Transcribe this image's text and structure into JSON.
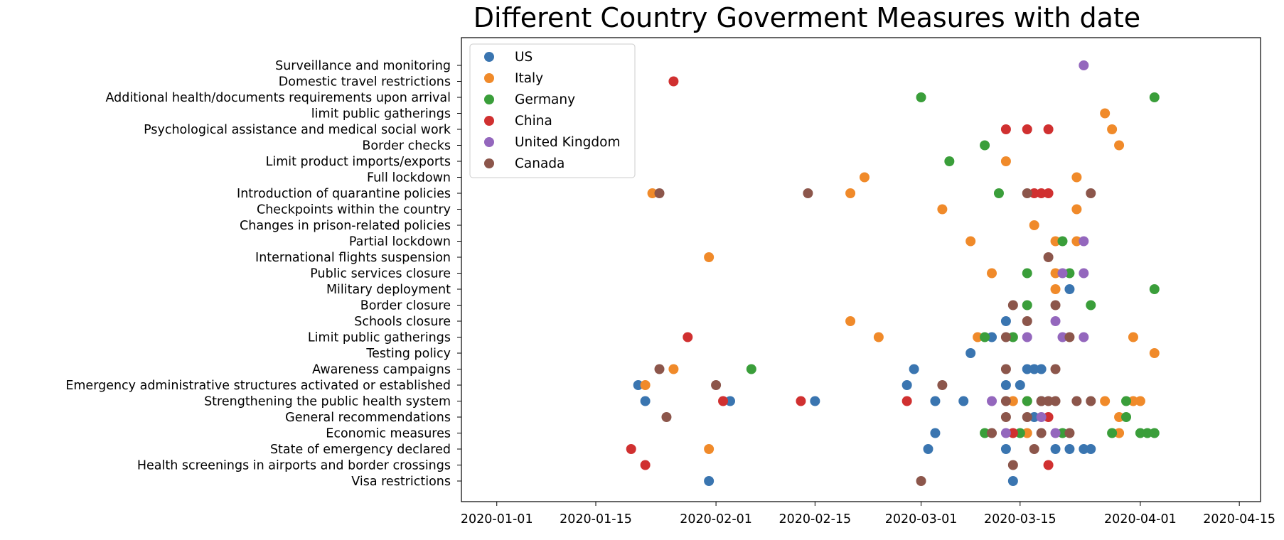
{
  "chart_data": {
    "type": "scatter",
    "title": "Different Country Goverment Measures with date",
    "xlabel": "",
    "ylabel": "",
    "x_axis": "date",
    "xlim": [
      "2019-12-27",
      "2020-04-18"
    ],
    "x_ticks": [
      "2020-01-01",
      "2020-01-15",
      "2020-02-01",
      "2020-02-15",
      "2020-03-01",
      "2020-03-15",
      "2020-04-01",
      "2020-04-15"
    ],
    "grid": false,
    "legend_position": "top-left",
    "categories": [
      "Visa restrictions",
      "Health screenings in airports and border crossings",
      "State of emergency declared",
      "Economic measures",
      "General recommendations",
      "Strengthening the public health system",
      "Emergency administrative structures activated or established",
      "Awareness campaigns",
      "Testing policy",
      "Limit public gatherings",
      "Schools closure",
      "Border closure",
      "Military deployment",
      "Public services closure",
      "International flights suspension",
      "Partial lockdown",
      "Changes in prison-related policies",
      "Checkpoints within the country",
      "Introduction of quarantine policies",
      "Full lockdown",
      "Limit product imports/exports",
      "Border checks",
      "Psychological assistance and medical social work",
      "limit public gatherings",
      "Additional health/documents requirements upon arrival",
      "Domestic travel restrictions",
      "Surveillance and monitoring"
    ],
    "series": [
      {
        "name": "US",
        "color": "#3a75b0",
        "points": [
          {
            "x": "2020-01-31",
            "y": "Visa restrictions"
          },
          {
            "x": "2020-03-14",
            "y": "Visa restrictions"
          },
          {
            "x": "2020-03-02",
            "y": "State of emergency declared"
          },
          {
            "x": "2020-03-13",
            "y": "State of emergency declared"
          },
          {
            "x": "2020-03-20",
            "y": "State of emergency declared"
          },
          {
            "x": "2020-03-22",
            "y": "State of emergency declared"
          },
          {
            "x": "2020-03-24",
            "y": "State of emergency declared"
          },
          {
            "x": "2020-03-25",
            "y": "State of emergency declared"
          },
          {
            "x": "2020-03-03",
            "y": "Economic measures"
          },
          {
            "x": "2020-03-17",
            "y": "General recommendations"
          },
          {
            "x": "2020-01-22",
            "y": "Strengthening the public health system"
          },
          {
            "x": "2020-02-03",
            "y": "Strengthening the public health system"
          },
          {
            "x": "2020-02-15",
            "y": "Strengthening the public health system"
          },
          {
            "x": "2020-03-03",
            "y": "Strengthening the public health system"
          },
          {
            "x": "2020-03-07",
            "y": "Strengthening the public health system"
          },
          {
            "x": "2020-03-18",
            "y": "Strengthening the public health system"
          },
          {
            "x": "2020-01-21",
            "y": "Emergency administrative structures activated or established"
          },
          {
            "x": "2020-02-28",
            "y": "Emergency administrative structures activated or established"
          },
          {
            "x": "2020-03-13",
            "y": "Emergency administrative structures activated or established"
          },
          {
            "x": "2020-03-15",
            "y": "Emergency administrative structures activated or established"
          },
          {
            "x": "2020-02-29",
            "y": "Awareness campaigns"
          },
          {
            "x": "2020-03-16",
            "y": "Awareness campaigns"
          },
          {
            "x": "2020-03-17",
            "y": "Awareness campaigns"
          },
          {
            "x": "2020-03-18",
            "y": "Awareness campaigns"
          },
          {
            "x": "2020-03-08",
            "y": "Testing policy"
          },
          {
            "x": "2020-03-11",
            "y": "Limit public gatherings"
          },
          {
            "x": "2020-03-13",
            "y": "Schools closure"
          },
          {
            "x": "2020-03-22",
            "y": "Military deployment"
          }
        ]
      },
      {
        "name": "Italy",
        "color": "#f08a2a",
        "points": [
          {
            "x": "2020-01-31",
            "y": "State of emergency declared"
          },
          {
            "x": "2020-03-29",
            "y": "Economic measures"
          },
          {
            "x": "2020-03-16",
            "y": "Economic measures"
          },
          {
            "x": "2020-03-29",
            "y": "General recommendations"
          },
          {
            "x": "2020-03-14",
            "y": "Strengthening the public health system"
          },
          {
            "x": "2020-03-16",
            "y": "Strengthening the public health system"
          },
          {
            "x": "2020-03-27",
            "y": "Strengthening the public health system"
          },
          {
            "x": "2020-03-31",
            "y": "Strengthening the public health system"
          },
          {
            "x": "2020-04-01",
            "y": "Strengthening the public health system"
          },
          {
            "x": "2020-01-22",
            "y": "Emergency administrative structures activated or established"
          },
          {
            "x": "2020-01-26",
            "y": "Awareness campaigns"
          },
          {
            "x": "2020-04-03",
            "y": "Testing policy"
          },
          {
            "x": "2020-02-24",
            "y": "Limit public gatherings"
          },
          {
            "x": "2020-03-09",
            "y": "Limit public gatherings"
          },
          {
            "x": "2020-03-31",
            "y": "Limit public gatherings"
          },
          {
            "x": "2020-02-20",
            "y": "Schools closure"
          },
          {
            "x": "2020-03-20",
            "y": "Military deployment"
          },
          {
            "x": "2020-03-20",
            "y": "Public services closure"
          },
          {
            "x": "2020-03-11",
            "y": "Public services closure"
          },
          {
            "x": "2020-01-31",
            "y": "International flights suspension"
          },
          {
            "x": "2020-03-08",
            "y": "Partial lockdown"
          },
          {
            "x": "2020-03-20",
            "y": "Partial lockdown"
          },
          {
            "x": "2020-03-23",
            "y": "Partial lockdown"
          },
          {
            "x": "2020-03-17",
            "y": "Changes in prison-related policies"
          },
          {
            "x": "2020-03-04",
            "y": "Checkpoints within the country"
          },
          {
            "x": "2020-03-23",
            "y": "Checkpoints within the country"
          },
          {
            "x": "2020-01-23",
            "y": "Introduction of quarantine policies"
          },
          {
            "x": "2020-02-20",
            "y": "Introduction of quarantine policies"
          },
          {
            "x": "2020-02-22",
            "y": "Full lockdown"
          },
          {
            "x": "2020-03-23",
            "y": "Full lockdown"
          },
          {
            "x": "2020-03-13",
            "y": "Limit product imports/exports"
          },
          {
            "x": "2020-03-29",
            "y": "Border checks"
          },
          {
            "x": "2020-03-28",
            "y": "Psychological assistance and medical social work"
          },
          {
            "x": "2020-03-27",
            "y": "limit public gatherings"
          }
        ]
      },
      {
        "name": "Germany",
        "color": "#3a9e3a",
        "points": [
          {
            "x": "2020-03-21",
            "y": "Economic measures"
          },
          {
            "x": "2020-03-28",
            "y": "Economic measures"
          },
          {
            "x": "2020-04-01",
            "y": "Economic measures"
          },
          {
            "x": "2020-04-02",
            "y": "Economic measures"
          },
          {
            "x": "2020-04-03",
            "y": "Economic measures"
          },
          {
            "x": "2020-03-10",
            "y": "Economic measures"
          },
          {
            "x": "2020-03-15",
            "y": "Economic measures"
          },
          {
            "x": "2020-03-30",
            "y": "General recommendations"
          },
          {
            "x": "2020-03-16",
            "y": "Strengthening the public health system"
          },
          {
            "x": "2020-03-30",
            "y": "Strengthening the public health system"
          },
          {
            "x": "2020-02-06",
            "y": "Awareness campaigns"
          },
          {
            "x": "2020-03-10",
            "y": "Limit public gatherings"
          },
          {
            "x": "2020-03-14",
            "y": "Limit public gatherings"
          },
          {
            "x": "2020-03-16",
            "y": "Border closure"
          },
          {
            "x": "2020-03-25",
            "y": "Border closure"
          },
          {
            "x": "2020-04-03",
            "y": "Military deployment"
          },
          {
            "x": "2020-03-16",
            "y": "Public services closure"
          },
          {
            "x": "2020-03-22",
            "y": "Public services closure"
          },
          {
            "x": "2020-03-21",
            "y": "Partial lockdown"
          },
          {
            "x": "2020-03-12",
            "y": "Introduction of quarantine policies"
          },
          {
            "x": "2020-03-05",
            "y": "Limit product imports/exports"
          },
          {
            "x": "2020-03-10",
            "y": "Border checks"
          },
          {
            "x": "2020-03-01",
            "y": "Additional health/documents requirements upon arrival"
          },
          {
            "x": "2020-04-03",
            "y": "Additional health/documents requirements upon arrival"
          }
        ]
      },
      {
        "name": "China",
        "color": "#d03030",
        "points": [
          {
            "x": "2020-01-22",
            "y": "Health screenings in airports and border crossings"
          },
          {
            "x": "2020-03-19",
            "y": "Health screenings in airports and border crossings"
          },
          {
            "x": "2020-01-20",
            "y": "State of emergency declared"
          },
          {
            "x": "2020-03-14",
            "y": "Economic measures"
          },
          {
            "x": "2020-03-19",
            "y": "General recommendations"
          },
          {
            "x": "2020-02-02",
            "y": "Strengthening the public health system"
          },
          {
            "x": "2020-02-13",
            "y": "Strengthening the public health system"
          },
          {
            "x": "2020-02-28",
            "y": "Strengthening the public health system"
          },
          {
            "x": "2020-01-28",
            "y": "Limit public gatherings"
          },
          {
            "x": "2020-03-17",
            "y": "Introduction of quarantine policies"
          },
          {
            "x": "2020-03-18",
            "y": "Introduction of quarantine policies"
          },
          {
            "x": "2020-03-19",
            "y": "Introduction of quarantine policies"
          },
          {
            "x": "2020-03-13",
            "y": "Psychological assistance and medical social work"
          },
          {
            "x": "2020-03-16",
            "y": "Psychological assistance and medical social work"
          },
          {
            "x": "2020-03-19",
            "y": "Psychological assistance and medical social work"
          },
          {
            "x": "2020-01-26",
            "y": "Domestic travel restrictions"
          }
        ]
      },
      {
        "name": "United Kingdom",
        "color": "#9467bd",
        "points": [
          {
            "x": "2020-03-18",
            "y": "General recommendations"
          },
          {
            "x": "2020-03-13",
            "y": "Economic measures"
          },
          {
            "x": "2020-03-20",
            "y": "Economic measures"
          },
          {
            "x": "2020-03-11",
            "y": "Strengthening the public health system"
          },
          {
            "x": "2020-03-16",
            "y": "Limit public gatherings"
          },
          {
            "x": "2020-03-21",
            "y": "Limit public gatherings"
          },
          {
            "x": "2020-03-24",
            "y": "Limit public gatherings"
          },
          {
            "x": "2020-03-20",
            "y": "Schools closure"
          },
          {
            "x": "2020-03-21",
            "y": "Public services closure"
          },
          {
            "x": "2020-03-24",
            "y": "Public services closure"
          },
          {
            "x": "2020-03-24",
            "y": "Partial lockdown"
          },
          {
            "x": "2020-03-24",
            "y": "Surveillance and monitoring"
          }
        ]
      },
      {
        "name": "Canada",
        "color": "#8c564b",
        "points": [
          {
            "x": "2020-03-01",
            "y": "Visa restrictions"
          },
          {
            "x": "2020-03-14",
            "y": "Health screenings in airports and border crossings"
          },
          {
            "x": "2020-03-17",
            "y": "State of emergency declared"
          },
          {
            "x": "2020-03-11",
            "y": "Economic measures"
          },
          {
            "x": "2020-03-18",
            "y": "Economic measures"
          },
          {
            "x": "2020-03-22",
            "y": "Economic measures"
          },
          {
            "x": "2020-01-25",
            "y": "General recommendations"
          },
          {
            "x": "2020-03-13",
            "y": "General recommendations"
          },
          {
            "x": "2020-03-16",
            "y": "General recommendations"
          },
          {
            "x": "2020-03-13",
            "y": "Strengthening the public health system"
          },
          {
            "x": "2020-03-18",
            "y": "Strengthening the public health system"
          },
          {
            "x": "2020-03-19",
            "y": "Strengthening the public health system"
          },
          {
            "x": "2020-03-20",
            "y": "Strengthening the public health system"
          },
          {
            "x": "2020-03-23",
            "y": "Strengthening the public health system"
          },
          {
            "x": "2020-03-25",
            "y": "Strengthening the public health system"
          },
          {
            "x": "2020-02-01",
            "y": "Emergency administrative structures activated or established"
          },
          {
            "x": "2020-03-04",
            "y": "Emergency administrative structures activated or established"
          },
          {
            "x": "2020-01-24",
            "y": "Awareness campaigns"
          },
          {
            "x": "2020-03-13",
            "y": "Awareness campaigns"
          },
          {
            "x": "2020-03-20",
            "y": "Awareness campaigns"
          },
          {
            "x": "2020-03-13",
            "y": "Limit public gatherings"
          },
          {
            "x": "2020-03-22",
            "y": "Limit public gatherings"
          },
          {
            "x": "2020-03-16",
            "y": "Schools closure"
          },
          {
            "x": "2020-03-14",
            "y": "Border closure"
          },
          {
            "x": "2020-03-20",
            "y": "Border closure"
          },
          {
            "x": "2020-03-19",
            "y": "International flights suspension"
          },
          {
            "x": "2020-01-24",
            "y": "Introduction of quarantine policies"
          },
          {
            "x": "2020-02-14",
            "y": "Introduction of quarantine policies"
          },
          {
            "x": "2020-03-16",
            "y": "Introduction of quarantine policies"
          },
          {
            "x": "2020-03-25",
            "y": "Introduction of quarantine policies"
          }
        ]
      }
    ]
  }
}
